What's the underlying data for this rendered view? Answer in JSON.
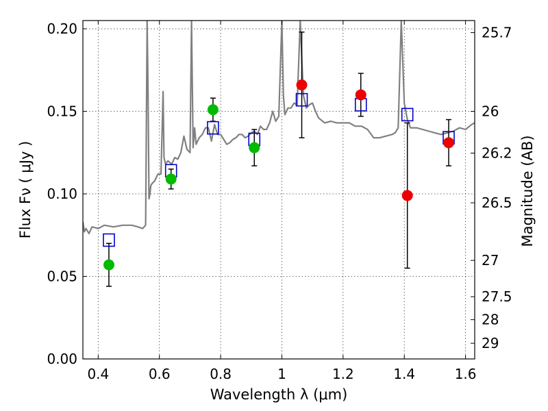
{
  "chart_data": {
    "type": "scatter",
    "title": "",
    "xlabel": "Wavelength  λ (μm)",
    "ylabel": "Flux  Fν  ( μJy )",
    "ylabel_right": "Magnitude (AB)",
    "xlim": [
      0.35,
      1.63
    ],
    "ylim": [
      0.0,
      0.205
    ],
    "grid": true,
    "x_ticks": [
      0.4,
      0.6,
      0.8,
      1.0,
      1.2,
      1.4,
      1.6
    ],
    "x_tick_labels": [
      "0.4",
      "0.6",
      "0.8",
      "1",
      "1.2",
      "1.4",
      "1.6"
    ],
    "y_ticks": [
      0.0,
      0.05,
      0.1,
      0.15,
      0.2
    ],
    "y_tick_labels": [
      "0.00",
      "0.05",
      "0.10",
      "0.15",
      "0.20"
    ],
    "right_ticks": [
      {
        "label": "25.7",
        "flux": 0.1977
      },
      {
        "label": "26",
        "flux": 0.15
      },
      {
        "label": "26.2",
        "flux": 0.1247
      },
      {
        "label": "26.5",
        "flux": 0.0946
      },
      {
        "label": "27",
        "flux": 0.0597
      },
      {
        "label": "27.5",
        "flux": 0.0377
      },
      {
        "label": "28",
        "flux": 0.0238
      },
      {
        "label": "29",
        "flux": 0.0095
      }
    ],
    "series": [
      {
        "marker": "circle",
        "color": "#00bb00",
        "points": [
          {
            "x": 0.435,
            "y": 0.057,
            "err": 0.013
          },
          {
            "x": 0.638,
            "y": 0.109,
            "err": 0.006
          },
          {
            "x": 0.775,
            "y": 0.151,
            "err": 0.007
          },
          {
            "x": 0.91,
            "y": 0.128,
            "err": 0.011
          }
        ]
      },
      {
        "marker": "circle",
        "color": "#ee0000",
        "points": [
          {
            "x": 1.065,
            "y": 0.166,
            "err": 0.032
          },
          {
            "x": 1.258,
            "y": 0.16,
            "err": 0.013
          },
          {
            "x": 1.41,
            "y": 0.099,
            "err": 0.044
          },
          {
            "x": 1.545,
            "y": 0.131,
            "err": 0.014
          }
        ]
      },
      {
        "marker": "square",
        "color": "#0000cc",
        "points": [
          {
            "x": 0.435,
            "y": 0.072
          },
          {
            "x": 0.638,
            "y": 0.114
          },
          {
            "x": 0.775,
            "y": 0.14
          },
          {
            "x": 0.91,
            "y": 0.133
          },
          {
            "x": 1.065,
            "y": 0.157
          },
          {
            "x": 1.258,
            "y": 0.154
          },
          {
            "x": 1.41,
            "y": 0.148
          },
          {
            "x": 1.545,
            "y": 0.134
          }
        ]
      }
    ],
    "spectrum": {
      "color": "#808080",
      "x": [
        0.35,
        0.355,
        0.36,
        0.37,
        0.38,
        0.4,
        0.42,
        0.45,
        0.48,
        0.51,
        0.53,
        0.545,
        0.555,
        0.56,
        0.563,
        0.566,
        0.569,
        0.572,
        0.575,
        0.585,
        0.595,
        0.605,
        0.612,
        0.615,
        0.62,
        0.628,
        0.64,
        0.65,
        0.66,
        0.67,
        0.68,
        0.69,
        0.7,
        0.705,
        0.71,
        0.715,
        0.72,
        0.73,
        0.74,
        0.75,
        0.76,
        0.77,
        0.78,
        0.79,
        0.8,
        0.81,
        0.82,
        0.83,
        0.84,
        0.85,
        0.86,
        0.87,
        0.88,
        0.89,
        0.9,
        0.91,
        0.92,
        0.93,
        0.94,
        0.95,
        0.96,
        0.97,
        0.98,
        0.99,
        1.0,
        1.005,
        1.01,
        1.02,
        1.03,
        1.04,
        1.05,
        1.06,
        1.07,
        1.08,
        1.09,
        1.1,
        1.11,
        1.12,
        1.14,
        1.16,
        1.18,
        1.2,
        1.22,
        1.24,
        1.26,
        1.28,
        1.3,
        1.32,
        1.34,
        1.36,
        1.37,
        1.38,
        1.39,
        1.4,
        1.41,
        1.42,
        1.44,
        1.46,
        1.48,
        1.5,
        1.52,
        1.54,
        1.56,
        1.58,
        1.6,
        1.62,
        1.63
      ],
      "y": [
        0.083,
        0.077,
        0.079,
        0.076,
        0.08,
        0.079,
        0.081,
        0.08,
        0.081,
        0.081,
        0.08,
        0.079,
        0.081,
        0.205,
        0.16,
        0.097,
        0.1,
        0.105,
        0.106,
        0.108,
        0.112,
        0.112,
        0.162,
        0.122,
        0.118,
        0.12,
        0.118,
        0.122,
        0.121,
        0.125,
        0.135,
        0.127,
        0.125,
        0.205,
        0.128,
        0.14,
        0.13,
        0.134,
        0.136,
        0.14,
        0.14,
        0.132,
        0.142,
        0.136,
        0.136,
        0.133,
        0.13,
        0.131,
        0.133,
        0.134,
        0.136,
        0.136,
        0.134,
        0.135,
        0.137,
        0.138,
        0.136,
        0.141,
        0.139,
        0.139,
        0.143,
        0.15,
        0.144,
        0.147,
        0.205,
        0.16,
        0.148,
        0.152,
        0.152,
        0.155,
        0.154,
        0.205,
        0.16,
        0.152,
        0.154,
        0.155,
        0.15,
        0.146,
        0.143,
        0.144,
        0.143,
        0.143,
        0.143,
        0.141,
        0.141,
        0.139,
        0.134,
        0.134,
        0.135,
        0.136,
        0.137,
        0.14,
        0.205,
        0.155,
        0.145,
        0.14,
        0.14,
        0.139,
        0.138,
        0.137,
        0.136,
        0.137,
        0.138,
        0.14,
        0.139,
        0.142,
        0.143
      ]
    }
  }
}
